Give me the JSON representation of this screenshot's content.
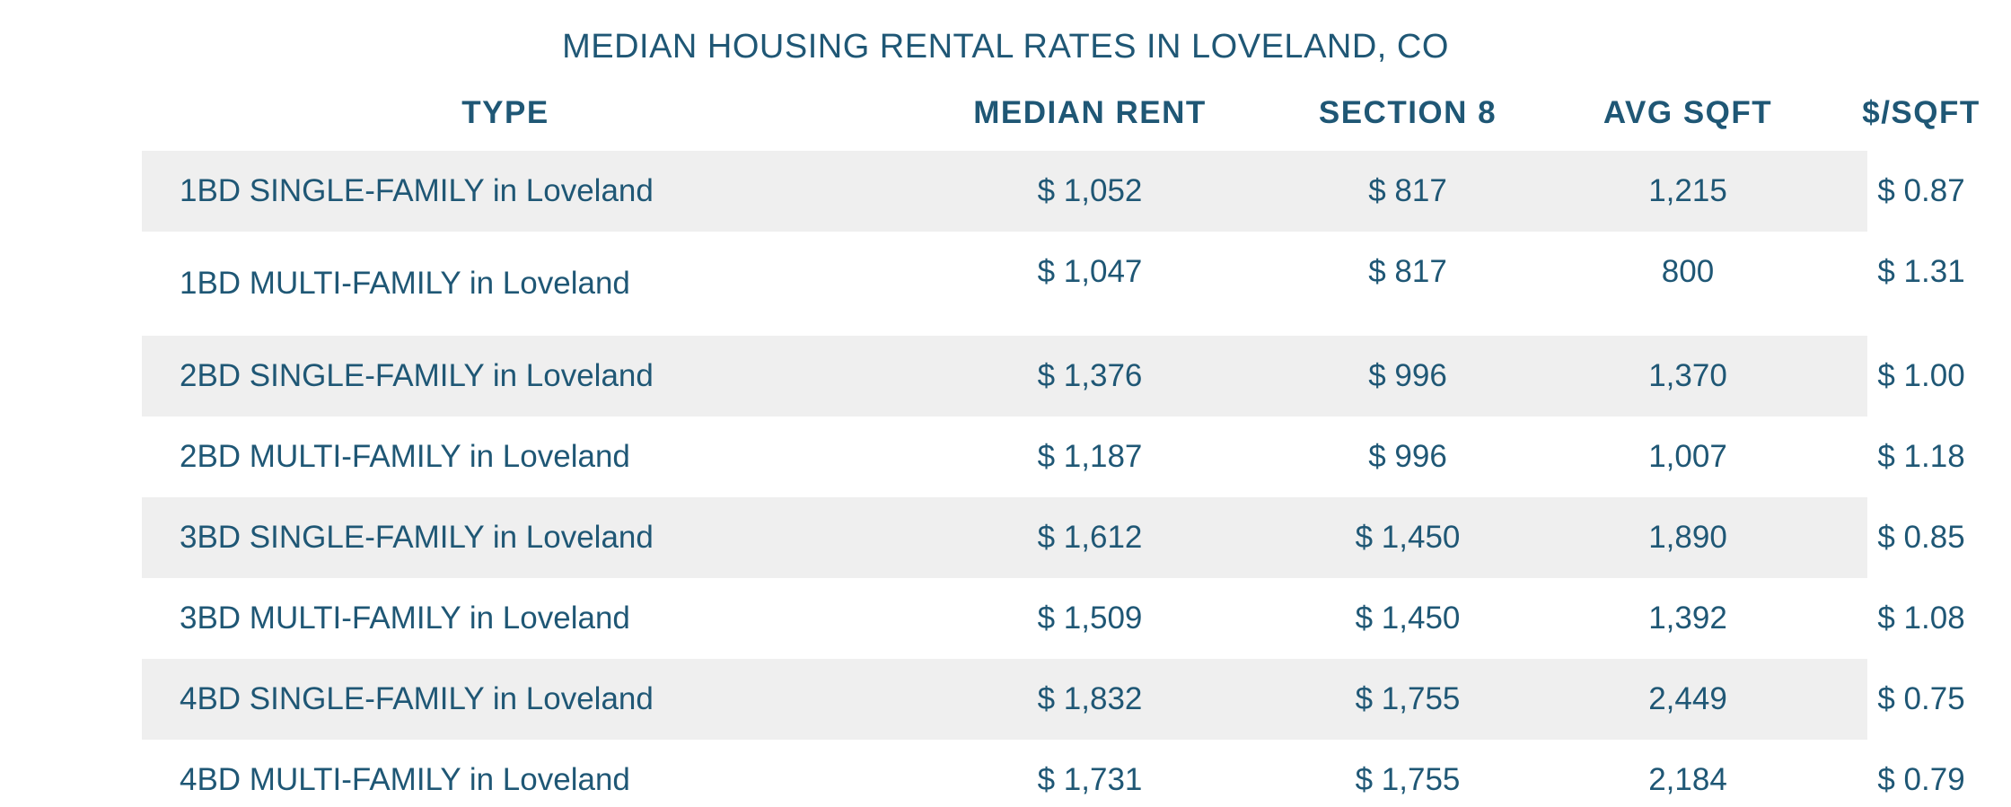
{
  "title": "MEDIAN HOUSING RENTAL RATES IN LOVELAND, CO",
  "headers": {
    "type": "TYPE",
    "median_rent": "MEDIAN RENT",
    "section8": "SECTION 8",
    "avg_sqft": "AVG SQFT",
    "price_per_sqft": "$/SQFT"
  },
  "rows": [
    {
      "type": "1BD SINGLE-FAMILY in Loveland",
      "median_rent": "$ 1,052",
      "section8": "$ 817",
      "avg_sqft": "1,215",
      "price_per_sqft": "$ 0.87"
    },
    {
      "type": "1BD MULTI-FAMILY in Loveland",
      "median_rent": "$ 1,047",
      "section8": "$ 817",
      "avg_sqft": "800",
      "price_per_sqft": "$ 1.31"
    },
    {
      "type": "2BD SINGLE-FAMILY in Loveland",
      "median_rent": "$ 1,376",
      "section8": "$ 996",
      "avg_sqft": "1,370",
      "price_per_sqft": "$ 1.00"
    },
    {
      "type": "2BD MULTI-FAMILY in Loveland",
      "median_rent": "$ 1,187",
      "section8": "$ 996",
      "avg_sqft": "1,007",
      "price_per_sqft": "$ 1.18"
    },
    {
      "type": "3BD SINGLE-FAMILY in Loveland",
      "median_rent": "$ 1,612",
      "section8": "$ 1,450",
      "avg_sqft": "1,890",
      "price_per_sqft": "$ 0.85"
    },
    {
      "type": "3BD MULTI-FAMILY in Loveland",
      "median_rent": "$ 1,509",
      "section8": "$ 1,450",
      "avg_sqft": "1,392",
      "price_per_sqft": "$ 1.08"
    },
    {
      "type": "4BD SINGLE-FAMILY in Loveland",
      "median_rent": "$ 1,832",
      "section8": "$ 1,755",
      "avg_sqft": "2,449",
      "price_per_sqft": "$ 0.75"
    },
    {
      "type": "4BD MULTI-FAMILY in Loveland",
      "median_rent": "$ 1,731",
      "section8": "$ 1,755",
      "avg_sqft": "2,184",
      "price_per_sqft": "$ 0.79"
    }
  ],
  "colors": {
    "text": "#1f5775",
    "stripe": "#efefef",
    "background": "#ffffff"
  }
}
